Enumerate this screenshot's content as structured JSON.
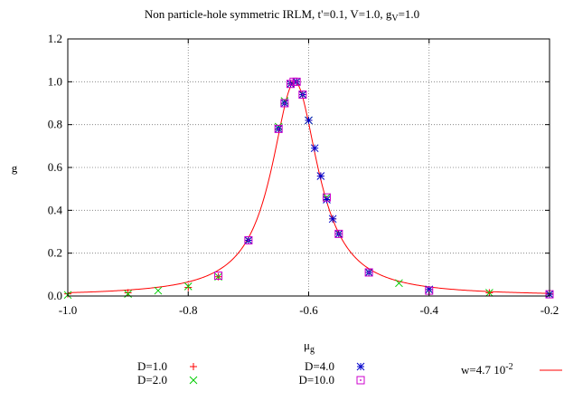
{
  "chart_data": {
    "type": "scatter",
    "title": {
      "main": "Non particle-hole symmetric IRLM, t'=0.1, V=1.0, g",
      "sub": "V",
      "tail": "=1.0"
    },
    "xlabel": {
      "main": "μ",
      "sub": "g"
    },
    "ylabel": "g",
    "xlim": [
      -1.0,
      -0.2
    ],
    "ylim": [
      0.0,
      1.2
    ],
    "xticks": [
      -1.0,
      -0.8,
      -0.6,
      -0.4,
      -0.2
    ],
    "xtick_labels": [
      "-1.0",
      "-0.8",
      "-0.6",
      "-0.4",
      "-0.2"
    ],
    "yticks": [
      0.0,
      0.2,
      0.4,
      0.6,
      0.8,
      1.0,
      1.2
    ],
    "ytick_labels": [
      "0.0",
      "0.2",
      "0.4",
      "0.6",
      "0.8",
      "1.0",
      "1.2"
    ],
    "grid": true,
    "legend_position": "below",
    "series": [
      {
        "name": "D=1.0",
        "marker": "plus",
        "color": "#ff0000",
        "x": [
          -1.0,
          -0.9,
          -0.8,
          -0.75,
          -0.7,
          -0.65,
          -0.64,
          -0.63,
          -0.625,
          -0.62,
          -0.61,
          -0.6,
          -0.58,
          -0.57,
          -0.56,
          -0.55,
          -0.5,
          -0.4,
          -0.3,
          -0.2
        ],
        "y": [
          0.01,
          0.015,
          0.04,
          0.09,
          0.26,
          0.78,
          0.9,
          0.99,
          1.0,
          1.0,
          0.94,
          0.82,
          0.56,
          0.45,
          0.36,
          0.29,
          0.11,
          0.03,
          0.015,
          0.01
        ]
      },
      {
        "name": "D=2.0",
        "marker": "x",
        "color": "#00cc00",
        "x": [
          -1.0,
          -0.9,
          -0.85,
          -0.8,
          -0.75,
          -0.7,
          -0.65,
          -0.64,
          -0.63,
          -0.62,
          -0.61,
          -0.6,
          -0.57,
          -0.55,
          -0.5,
          -0.45,
          -0.4,
          -0.3,
          -0.2
        ],
        "y": [
          0.005,
          0.01,
          0.025,
          0.045,
          0.09,
          0.26,
          0.79,
          0.91,
          0.99,
          1.0,
          0.94,
          0.82,
          0.46,
          0.29,
          0.11,
          0.06,
          0.03,
          0.015,
          0.008
        ]
      },
      {
        "name": "D=4.0",
        "marker": "star",
        "color": "#0000cc",
        "x": [
          -0.7,
          -0.65,
          -0.64,
          -0.63,
          -0.62,
          -0.61,
          -0.6,
          -0.59,
          -0.58,
          -0.57,
          -0.56,
          -0.55,
          -0.5,
          -0.4,
          -0.2
        ],
        "y": [
          0.26,
          0.78,
          0.9,
          0.99,
          1.0,
          0.94,
          0.82,
          0.69,
          0.56,
          0.45,
          0.36,
          0.29,
          0.11,
          0.03,
          0.008
        ]
      },
      {
        "name": "D=10.0",
        "marker": "dotted-square",
        "color": "#cc00cc",
        "x": [
          -0.75,
          -0.7,
          -0.65,
          -0.64,
          -0.63,
          -0.625,
          -0.62,
          -0.61,
          -0.57,
          -0.55,
          -0.5,
          -0.4,
          -0.2
        ],
        "y": [
          0.095,
          0.26,
          0.78,
          0.9,
          0.99,
          1.0,
          1.0,
          0.94,
          0.46,
          0.29,
          0.11,
          0.025,
          0.008
        ]
      }
    ],
    "fit": {
      "name_prefix": "w=4.7 10",
      "name_exp": "-2",
      "color": "#ff0000",
      "w": 0.047,
      "x0": -0.623,
      "peak": 1.0
    }
  }
}
